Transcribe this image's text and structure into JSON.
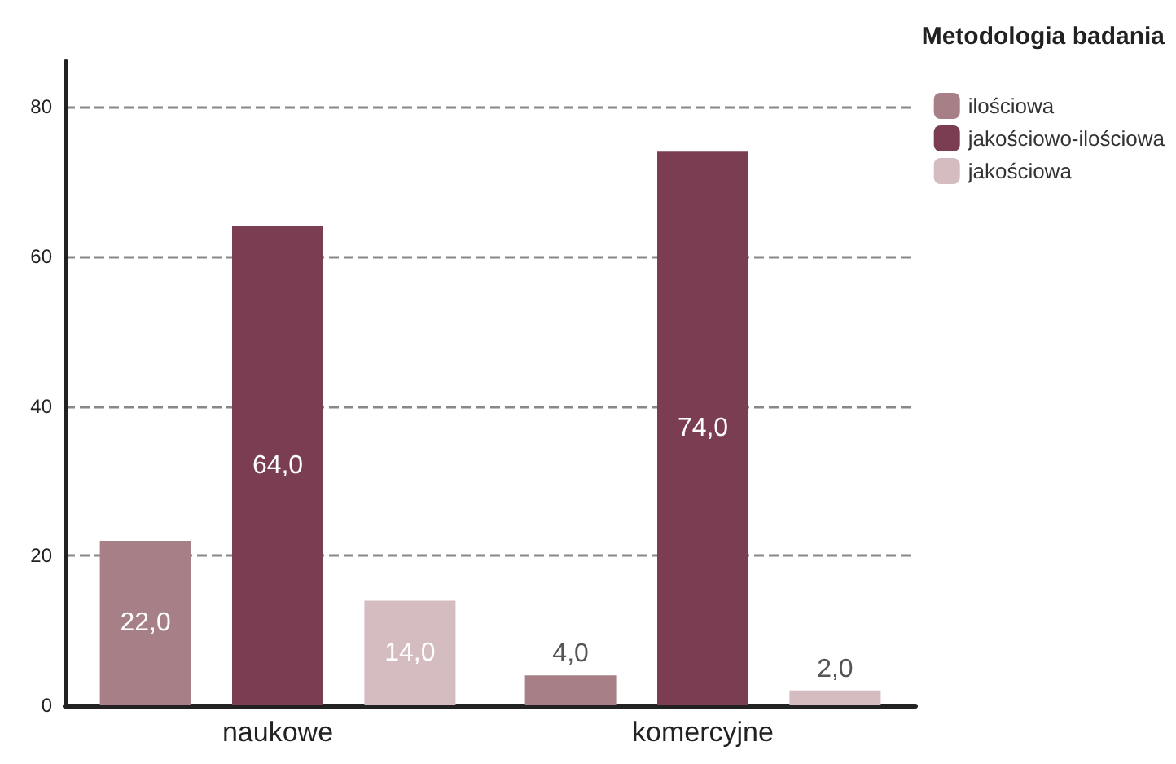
{
  "chart_data": {
    "type": "bar",
    "legend_title": "Metodologia badania",
    "categories": [
      "naukowe",
      "komercyjne"
    ],
    "series": [
      {
        "name": "ilościowa",
        "color": "#a67f87",
        "values": [
          22,
          4
        ],
        "value_labels": [
          "22,0",
          "4,0"
        ]
      },
      {
        "name": "jakościowo-ilościowa",
        "color": "#7a3d52",
        "values": [
          64,
          74
        ],
        "value_labels": [
          "64,0",
          "74,0"
        ]
      },
      {
        "name": "jakościowa",
        "color": "#d4bcc0",
        "values": [
          14,
          2
        ],
        "value_labels": [
          "14,0",
          "2,0"
        ]
      }
    ],
    "ylim": [
      0,
      86
    ],
    "yticks": [
      0,
      20,
      40,
      60,
      80
    ],
    "grid": "y",
    "legend": "top right"
  }
}
